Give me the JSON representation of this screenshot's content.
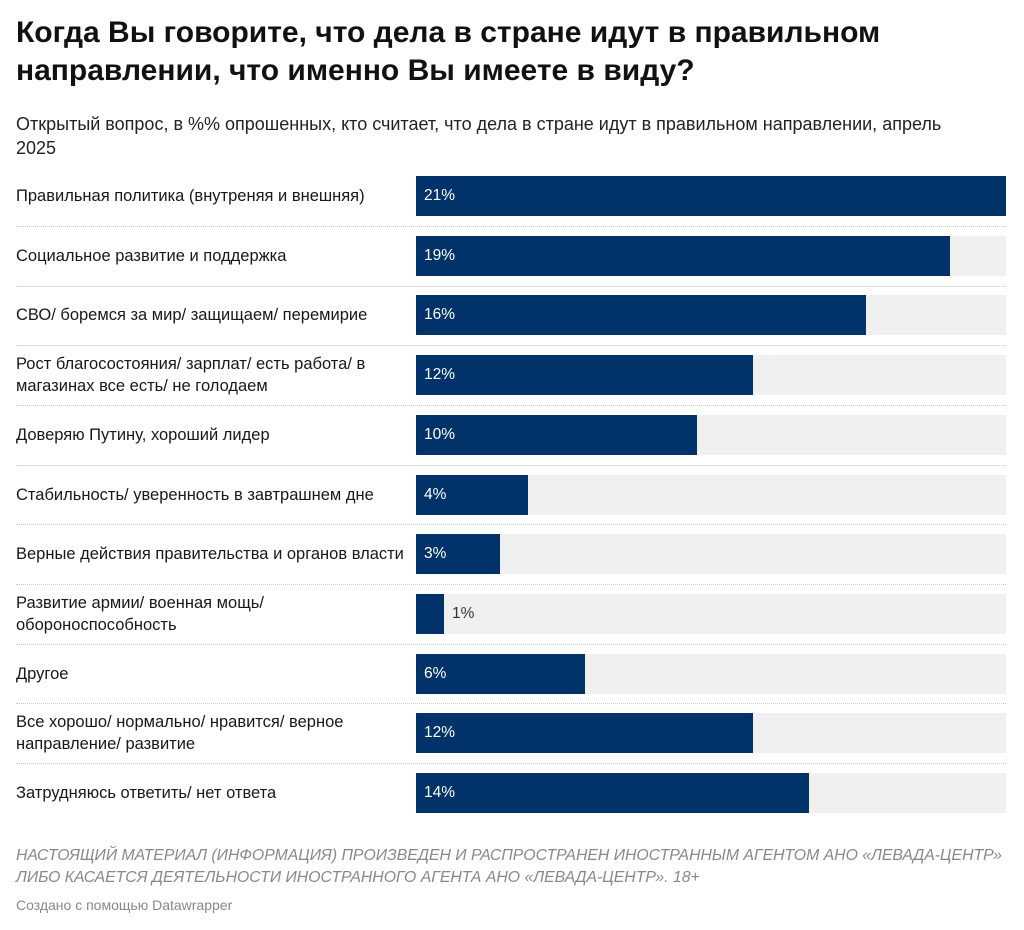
{
  "chart_data": {
    "type": "bar",
    "orientation": "horizontal",
    "title": "Когда Вы говорите, что дела в стране идут в правильном направлении, что именно Вы имеете в виду?",
    "subtitle": "Открытый вопрос, в %% опрошенных, кто считает, что дела в стране идут в правильном направлении, апрель 2025",
    "categories": [
      "Правильная политика (внутреняя и внешняя)",
      "Социальное развитие и поддержка",
      "СВО/ боремся за мир/ защищаем/ перемирие",
      "Рост благосостояния/ зарплат/ есть работа/ в магазинах все есть/ не голодаем",
      "Доверяю Путину, хороший лидер",
      "Стабильность/ уверенность в завтрашнем дне",
      "Верные действия правительства и органов власти",
      "Развитие армии/ военная мощь/ обороноспособность",
      "Другое",
      "Все хорошо/ нормально/ нравится/ верное направление/ развитие",
      "Затрудняюсь ответить/ нет ответа"
    ],
    "values": [
      21,
      19,
      16,
      12,
      10,
      4,
      3,
      1,
      6,
      12,
      14
    ],
    "value_labels": [
      "21%",
      "19%",
      "16%",
      "12%",
      "10%",
      "4%",
      "3%",
      "1%",
      "6%",
      "12%",
      "14%"
    ],
    "xlim": [
      0,
      21
    ],
    "bar_color": "#01326a",
    "track_color": "#f0f0f0"
  },
  "footer": {
    "note": "НАСТОЯЩИЙ МАТЕРИАЛ (ИНФОРМАЦИЯ) ПРОИЗВЕДЕН И РАСПРОСТРАНЕН ИНОСТРАННЫМ АГЕНТОМ АНО «ЛЕВАДА-ЦЕНТР» ЛИБО КАСАЕТСЯ ДЕЯТЕЛЬНОСТИ ИНОСТРАННОГО АГЕНТА АНО «ЛЕВАДА-ЦЕНТР». 18+",
    "credit": "Создано с помощью Datawrapper"
  }
}
